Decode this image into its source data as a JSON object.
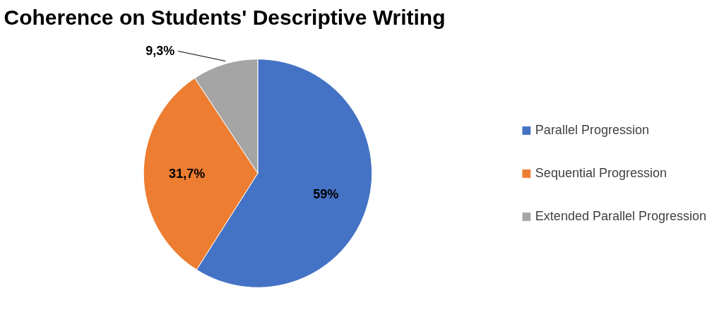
{
  "chart_data": {
    "type": "pie",
    "title": "Coherence on Students' Descriptive Writing",
    "categories": [
      "Parallel Progression",
      "Sequential Progression",
      "Extended Parallel Progression"
    ],
    "values": [
      59,
      31.7,
      9.3
    ],
    "colors": [
      "#4472c4",
      "#ed7d31",
      "#a5a5a5"
    ],
    "value_labels": [
      "59%",
      "31,7%",
      "9,3%"
    ],
    "legend": "right"
  }
}
